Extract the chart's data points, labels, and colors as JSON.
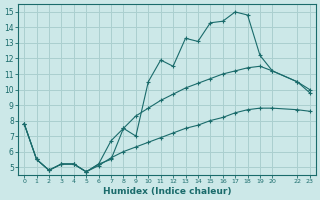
{
  "xlabel": "Humidex (Indice chaleur)",
  "background_color": "#cce8e8",
  "grid_color": "#aacfcf",
  "line_color": "#1a6b6b",
  "xlim": [
    -0.5,
    23.5
  ],
  "ylim": [
    4.5,
    15.5
  ],
  "xtick_vals": [
    0,
    1,
    2,
    3,
    4,
    5,
    6,
    7,
    8,
    9,
    10,
    11,
    12,
    13,
    14,
    15,
    16,
    17,
    18,
    19,
    20,
    22,
    23
  ],
  "ytick_vals": [
    5,
    6,
    7,
    8,
    9,
    10,
    11,
    12,
    13,
    14,
    15
  ],
  "curve1_x": [
    0,
    1,
    2,
    3,
    4,
    5,
    6,
    7,
    8,
    9,
    10,
    11,
    12,
    13,
    14,
    15,
    16,
    17,
    18,
    19,
    20,
    22,
    23
  ],
  "curve1_y": [
    7.8,
    5.5,
    4.8,
    5.2,
    5.2,
    4.7,
    5.2,
    5.5,
    7.5,
    7.0,
    10.5,
    11.9,
    11.5,
    13.3,
    13.1,
    14.3,
    14.4,
    15.0,
    14.8,
    12.2,
    11.2,
    10.5,
    9.8
  ],
  "curve2_x": [
    0,
    1,
    2,
    3,
    4,
    5,
    6,
    7,
    8,
    9,
    10,
    11,
    12,
    13,
    14,
    15,
    16,
    17,
    18,
    19,
    20,
    22,
    23
  ],
  "curve2_y": [
    7.8,
    5.5,
    4.8,
    5.2,
    5.2,
    4.7,
    5.2,
    6.7,
    7.5,
    8.3,
    8.8,
    9.3,
    9.7,
    10.1,
    10.4,
    10.7,
    11.0,
    11.2,
    11.4,
    11.5,
    11.2,
    10.5,
    10.0
  ],
  "curve3_x": [
    0,
    1,
    2,
    3,
    4,
    5,
    6,
    7,
    8,
    9,
    10,
    11,
    12,
    13,
    14,
    15,
    16,
    17,
    18,
    19,
    20,
    22,
    23
  ],
  "curve3_y": [
    7.8,
    5.5,
    4.8,
    5.2,
    5.2,
    4.7,
    5.1,
    5.6,
    6.0,
    6.3,
    6.6,
    6.9,
    7.2,
    7.5,
    7.7,
    8.0,
    8.2,
    8.5,
    8.7,
    8.8,
    8.8,
    8.7,
    8.6
  ]
}
